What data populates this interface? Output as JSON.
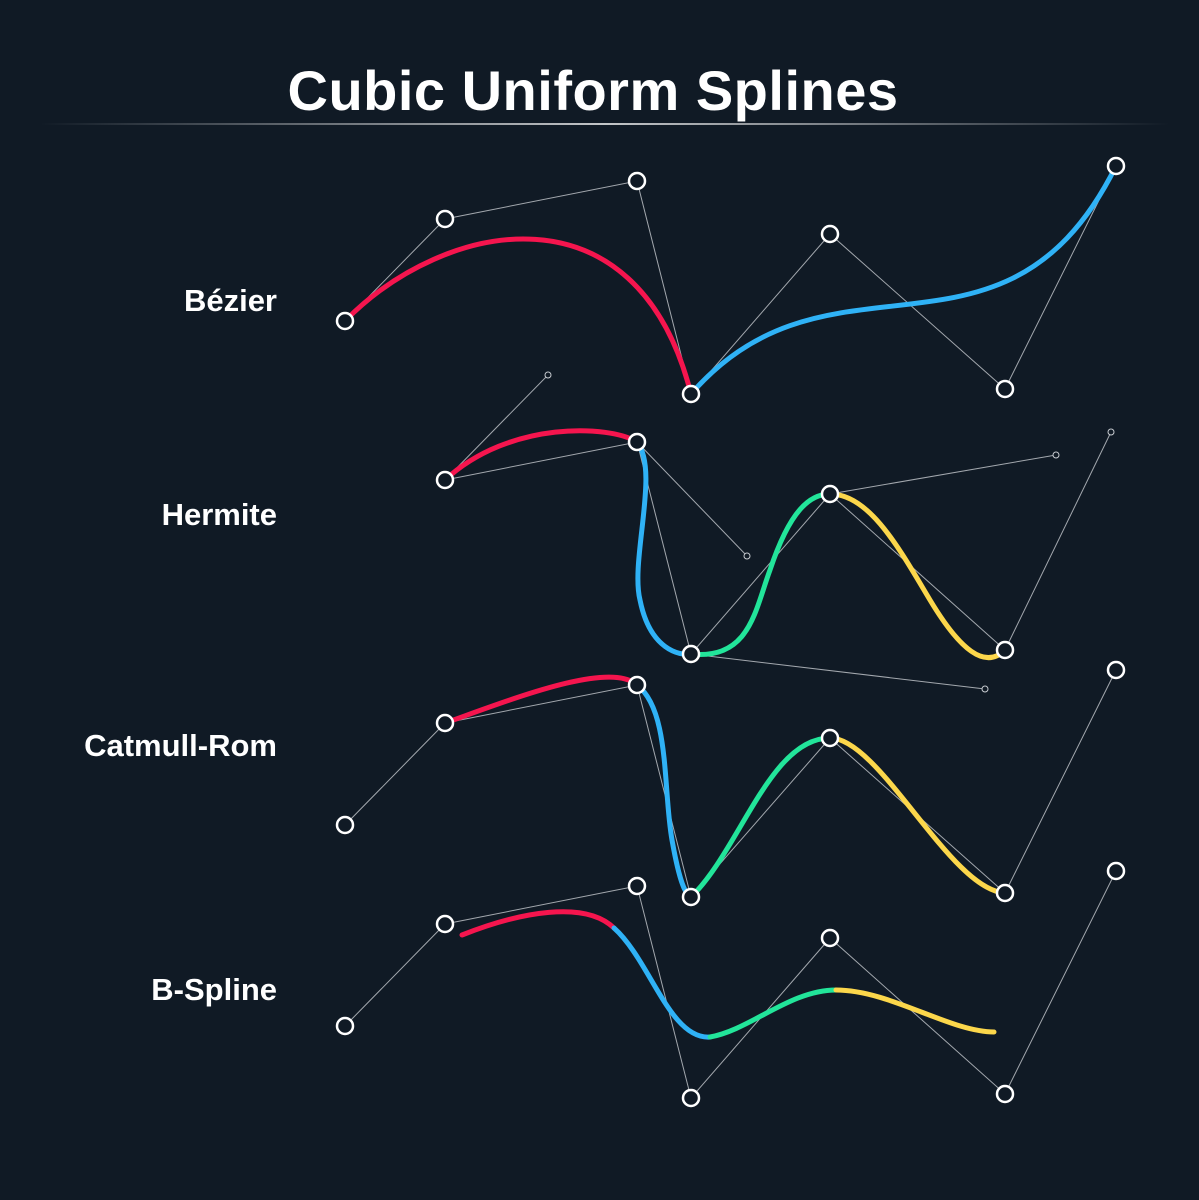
{
  "title": "Cubic Uniform Splines",
  "colors": {
    "background": "#101a25",
    "red": "#f5154e",
    "blue": "#2fb2f6",
    "green": "#22e59a",
    "yellow": "#fcd74b",
    "control_line": "#c8ccd1",
    "point": "#ffffff"
  },
  "rows": [
    {
      "key": "bezier",
      "label": "Bézier"
    },
    {
      "key": "hermite",
      "label": "Hermite"
    },
    {
      "key": "catmull",
      "label": "Catmull-Rom"
    },
    {
      "key": "bspline",
      "label": "B-Spline"
    }
  ]
}
